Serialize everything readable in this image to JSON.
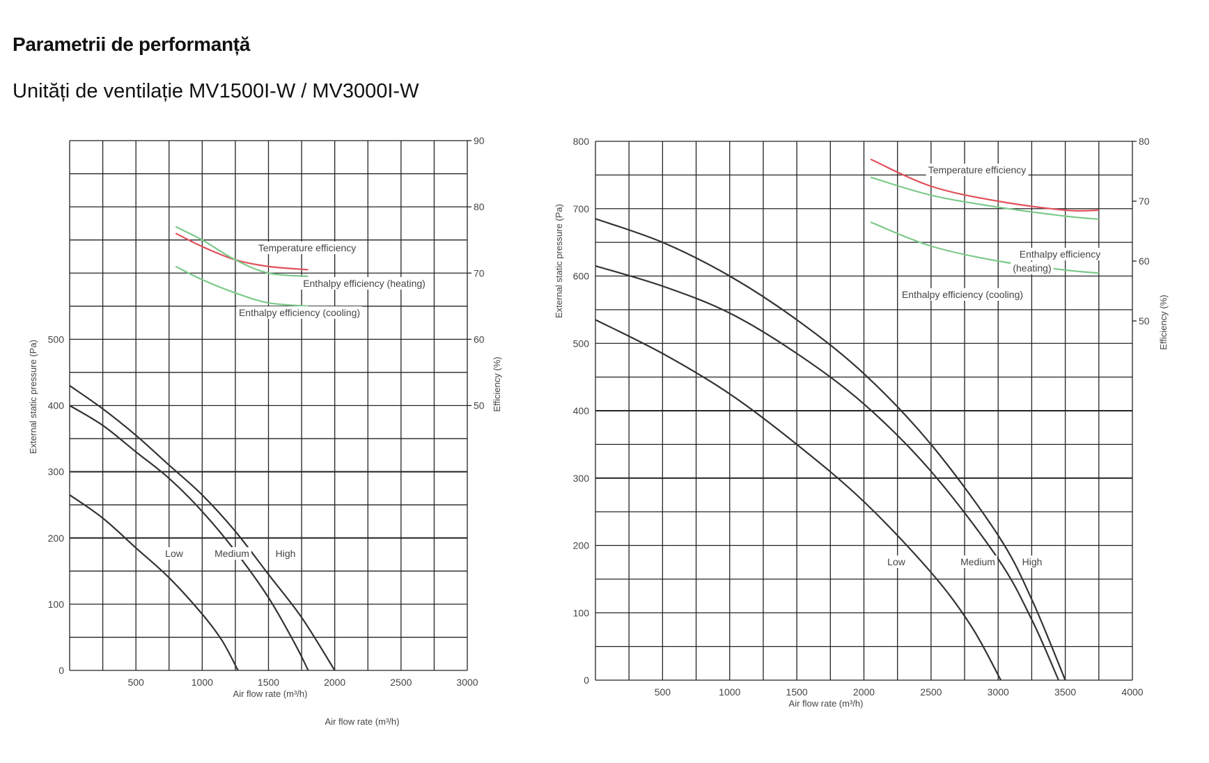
{
  "page": {
    "heading": "Parametrii de performanță",
    "subheading": "Unități de ventilație MV1500I-W / MV3000I-W"
  },
  "colors": {
    "grid": "#222222",
    "fan_curve": "#333333",
    "temperature": "#e0505a",
    "enthalpy": "#7cc98a",
    "text": "#444444"
  },
  "chart_data": [
    {
      "type": "line",
      "xlabel": "Air flow rate (m³/h)",
      "xlabel_extra": "Air flow rate (m³/h)",
      "ylabel": "External static pressure (Pa)",
      "y2label": "Efficiency (%)",
      "xlim": [
        0,
        3000
      ],
      "ylim": [
        0,
        800
      ],
      "y2lim": [
        10,
        90
      ],
      "x_ticks": [
        500,
        1000,
        1500,
        2000,
        2500,
        3000
      ],
      "y_ticks": [
        0,
        100,
        200,
        300,
        400,
        500
      ],
      "y2_ticks": [
        50,
        60,
        70,
        80,
        90
      ],
      "grid": true,
      "pressure_series": [
        {
          "name": "Low",
          "points": [
            [
              0,
              265
            ],
            [
              250,
              230
            ],
            [
              500,
              185
            ],
            [
              750,
              140
            ],
            [
              1000,
              85
            ],
            [
              1150,
              45
            ],
            [
              1270,
              0
            ]
          ]
        },
        {
          "name": "Medium",
          "points": [
            [
              0,
              400
            ],
            [
              250,
              370
            ],
            [
              500,
              330
            ],
            [
              750,
              290
            ],
            [
              1000,
              240
            ],
            [
              1250,
              180
            ],
            [
              1500,
              110
            ],
            [
              1700,
              40
            ],
            [
              1800,
              0
            ]
          ]
        },
        {
          "name": "High",
          "points": [
            [
              0,
              430
            ],
            [
              250,
              395
            ],
            [
              500,
              355
            ],
            [
              750,
              310
            ],
            [
              1000,
              265
            ],
            [
              1250,
              210
            ],
            [
              1500,
              145
            ],
            [
              1750,
              80
            ],
            [
              2000,
              0
            ]
          ]
        }
      ],
      "efficiency_series": [
        {
          "name": "Temperature efficiency",
          "points": [
            [
              800,
              76
            ],
            [
              1000,
              74
            ],
            [
              1250,
              72
            ],
            [
              1500,
              71
            ],
            [
              1800,
              70.5
            ]
          ]
        },
        {
          "name": "Enthalpy efficiency (heating)",
          "points": [
            [
              800,
              77
            ],
            [
              1000,
              75
            ],
            [
              1250,
              72
            ],
            [
              1500,
              70
            ],
            [
              1800,
              69.5
            ]
          ]
        },
        {
          "name": "Enthalpy efficiency (cooling)",
          "points": [
            [
              800,
              71
            ],
            [
              1000,
              69
            ],
            [
              1250,
              67
            ],
            [
              1500,
              65.5
            ],
            [
              1800,
              65
            ]
          ]
        }
      ],
      "fan_labels": [
        "Low",
        "Medium",
        "High"
      ]
    },
    {
      "type": "line",
      "xlabel": "Air flow rate (m³/h)",
      "ylabel": "External static pressure (Pa)",
      "y2label": "Efficiency (%)",
      "xlim": [
        0,
        4000
      ],
      "ylim": [
        0,
        800
      ],
      "y2lim": [
        -10,
        80
      ],
      "x_ticks": [
        500,
        1000,
        1500,
        2000,
        2500,
        3000,
        3500,
        4000
      ],
      "y_ticks": [
        0,
        100,
        200,
        300,
        400,
        500,
        600,
        700,
        800
      ],
      "y2_ticks": [
        50,
        60,
        70,
        80
      ],
      "grid": true,
      "pressure_series": [
        {
          "name": "Low",
          "points": [
            [
              0,
              535
            ],
            [
              500,
              485
            ],
            [
              1000,
              425
            ],
            [
              1500,
              350
            ],
            [
              2000,
              265
            ],
            [
              2500,
              160
            ],
            [
              2800,
              80
            ],
            [
              3020,
              0
            ]
          ]
        },
        {
          "name": "Medium",
          "points": [
            [
              0,
              615
            ],
            [
              500,
              585
            ],
            [
              1000,
              545
            ],
            [
              1500,
              485
            ],
            [
              2000,
              410
            ],
            [
              2500,
              310
            ],
            [
              3000,
              180
            ],
            [
              3250,
              90
            ],
            [
              3450,
              0
            ]
          ]
        },
        {
          "name": "High",
          "points": [
            [
              0,
              685
            ],
            [
              500,
              650
            ],
            [
              1000,
              600
            ],
            [
              1500,
              535
            ],
            [
              2000,
              455
            ],
            [
              2500,
              350
            ],
            [
              3000,
              215
            ],
            [
              3250,
              120
            ],
            [
              3500,
              0
            ]
          ]
        }
      ],
      "efficiency_series": [
        {
          "name": "Temperature efficiency",
          "points": [
            [
              2050,
              77
            ],
            [
              2500,
              72.5
            ],
            [
              3000,
              70
            ],
            [
              3500,
              68.5
            ],
            [
              3750,
              68.5
            ]
          ]
        },
        {
          "name": "Enthalpy efficiency (heating)",
          "points": [
            [
              2050,
              74
            ],
            [
              2500,
              71
            ],
            [
              3000,
              69
            ],
            [
              3500,
              67.5
            ],
            [
              3750,
              67
            ]
          ]
        },
        {
          "name": "Enthalpy efficiency (cooling)",
          "points": [
            [
              2050,
              66.5
            ],
            [
              2500,
              62.5
            ],
            [
              3000,
              60
            ],
            [
              3500,
              58.5
            ],
            [
              3750,
              58
            ]
          ]
        }
      ],
      "fan_labels": [
        "Low",
        "Medium",
        "High"
      ]
    }
  ]
}
